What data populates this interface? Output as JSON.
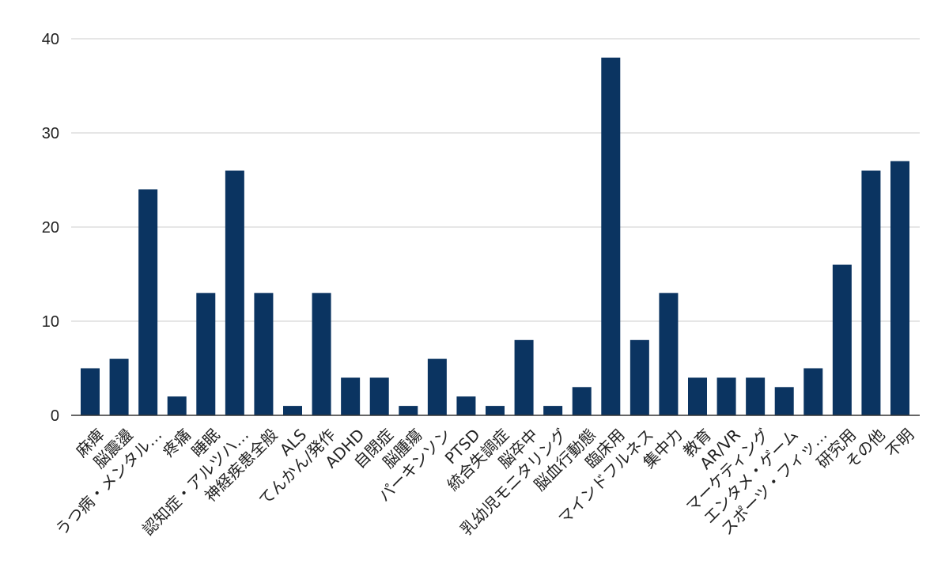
{
  "chart_data": {
    "type": "bar",
    "title": "",
    "xlabel": "",
    "ylabel": "",
    "ylim": [
      0,
      40
    ],
    "yticks": [
      0,
      10,
      20,
      30,
      40
    ],
    "grid": true,
    "legend": "none",
    "bar_color": "#0b3461",
    "categories": [
      "麻痺",
      "脳震盪",
      "うつ病・メンタル…",
      "疼痛",
      "睡眠",
      "認知症・アルツハ…",
      "神経疾患全般",
      "ALS",
      "てんかん/発作",
      "ADHD",
      "自閉症",
      "脳腫瘍",
      "パーキンソン",
      "PTSD",
      "統合失調症",
      "脳卒中",
      "乳幼児モニタリング",
      "脳血行動態",
      "臨床用",
      "マインドフルネス",
      "集中力",
      "教育",
      "AR/VR",
      "マーケティング",
      "エンタメ・ゲーム",
      "スポーツ・フィッ…",
      "研究用",
      "その他",
      "不明"
    ],
    "values": [
      5,
      6,
      24,
      2,
      13,
      26,
      13,
      1,
      13,
      4,
      4,
      1,
      6,
      2,
      1,
      8,
      1,
      3,
      38,
      8,
      13,
      4,
      4,
      4,
      3,
      5,
      16,
      26,
      27
    ]
  }
}
